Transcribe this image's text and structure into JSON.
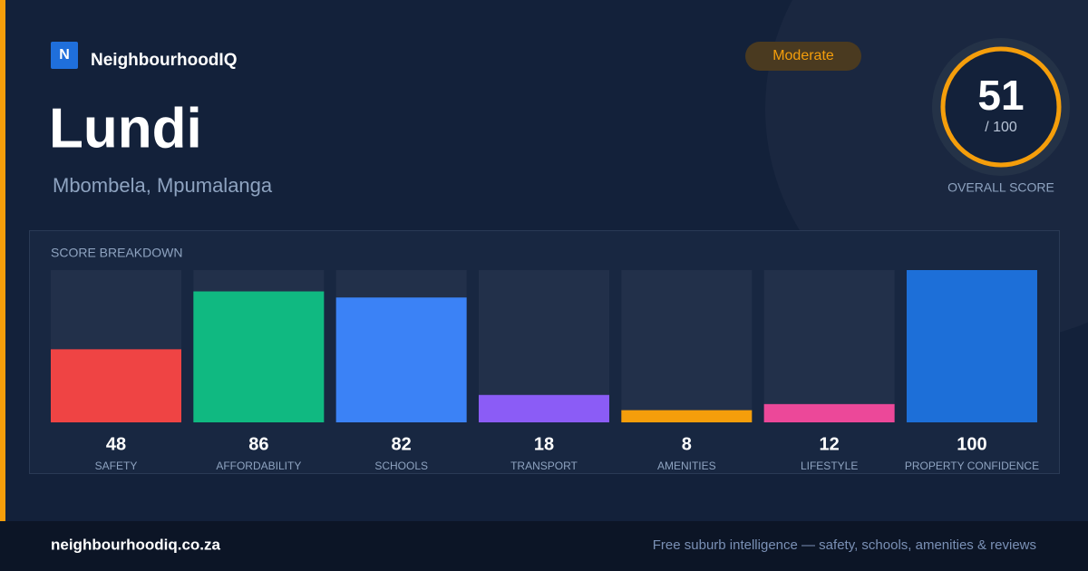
{
  "brand": {
    "logo": "N",
    "name": "NeighbourhoodIQ"
  },
  "title": "Lundi",
  "subtitle": "Mbombela, Mpumalanga",
  "badge": "Moderate",
  "overall": {
    "score": 51,
    "out_of": "/ 100",
    "label": "OVERALL SCORE"
  },
  "chart_data": {
    "type": "bar",
    "title": "SCORE BREAKDOWN",
    "categories": [
      "SAFETY",
      "AFFORDABILITY",
      "SCHOOLS",
      "TRANSPORT",
      "AMENITIES",
      "LIFESTYLE",
      "PROPERTY CONFIDENCE"
    ],
    "values": [
      48,
      86,
      82,
      18,
      8,
      12,
      100
    ],
    "colors": [
      "#ef4444",
      "#10b981",
      "#3b82f6",
      "#8b5cf6",
      "#f59e0b",
      "#ec4899",
      "#1d6fd8"
    ],
    "ylim": [
      0,
      100
    ]
  },
  "footer": {
    "site": "neighbourhoodiq.co.za",
    "tagline": "Free suburb intelligence — safety, schools, amenities & reviews"
  }
}
